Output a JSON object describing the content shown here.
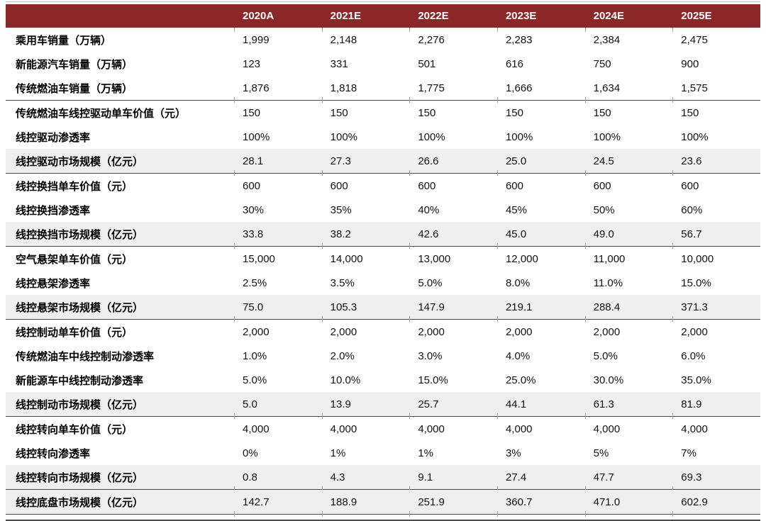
{
  "colors": {
    "header_bg": "#8B2726",
    "header_text": "#FFFFFF",
    "shaded_row_bg": "#EFEFEF",
    "section_border": "#4A4A4A",
    "tick_mark": "#A3A3A3",
    "top_rule": "#BDBDBD"
  },
  "chart_data": {
    "type": "table",
    "columns": [
      "",
      "2020A",
      "2021E",
      "2022E",
      "2023E",
      "2024E",
      "2025E"
    ],
    "rows": [
      {
        "label": "乘用车销量（万辆）",
        "values": [
          "1,999",
          "2,148",
          "2,276",
          "2,283",
          "2,384",
          "2,475"
        ],
        "shaded": false,
        "section_end": false
      },
      {
        "label": "新能源汽车销量（万辆）",
        "values": [
          "123",
          "331",
          "501",
          "616",
          "750",
          "900"
        ],
        "shaded": false,
        "section_end": false
      },
      {
        "label": "传统燃油车销量（万辆）",
        "values": [
          "1,876",
          "1,818",
          "1,775",
          "1,666",
          "1,634",
          "1,575"
        ],
        "shaded": false,
        "section_end": true
      },
      {
        "label": "传统燃油车线控驱动单车价值（元）",
        "values": [
          "150",
          "150",
          "150",
          "150",
          "150",
          "150"
        ],
        "shaded": false,
        "section_end": false
      },
      {
        "label": "线控驱动渗透率",
        "values": [
          "100%",
          "100%",
          "100%",
          "100%",
          "100%",
          "100%"
        ],
        "shaded": false,
        "section_end": false
      },
      {
        "label": "线控驱动市场规模（亿元）",
        "values": [
          "28.1",
          "27.3",
          "26.6",
          "25.0",
          "24.5",
          "23.6"
        ],
        "shaded": true,
        "section_end": true
      },
      {
        "label": "线控换挡单车价值（元）",
        "values": [
          "600",
          "600",
          "600",
          "600",
          "600",
          "600"
        ],
        "shaded": false,
        "section_end": false
      },
      {
        "label": "线控换挡渗透率",
        "values": [
          "30%",
          "35%",
          "40%",
          "45%",
          "50%",
          "60%"
        ],
        "shaded": false,
        "section_end": false
      },
      {
        "label": "线控换挡市场规模（亿元）",
        "values": [
          "33.8",
          "38.2",
          "42.6",
          "45.0",
          "49.0",
          "56.7"
        ],
        "shaded": true,
        "section_end": true
      },
      {
        "label": "空气悬架单车价值（元）",
        "values": [
          "15,000",
          "14,000",
          "13,000",
          "12,000",
          "11,000",
          "10,000"
        ],
        "shaded": false,
        "section_end": false
      },
      {
        "label": "线控悬架渗透率",
        "values": [
          "2.5%",
          "3.5%",
          "5.0%",
          "8.0%",
          "11.0%",
          "15.0%"
        ],
        "shaded": false,
        "section_end": false
      },
      {
        "label": "线控悬架市场规模（亿元）",
        "values": [
          "75.0",
          "105.3",
          "147.9",
          "219.1",
          "288.4",
          "371.3"
        ],
        "shaded": true,
        "section_end": true
      },
      {
        "label": "线控制动单车价值（元）",
        "values": [
          "2,000",
          "2,000",
          "2,000",
          "2,000",
          "2,000",
          "2,000"
        ],
        "shaded": false,
        "section_end": false
      },
      {
        "label": "传统燃油车中线控制动渗透率",
        "values": [
          "1.0%",
          "2.0%",
          "3.0%",
          "4.0%",
          "5.0%",
          "6.0%"
        ],
        "shaded": false,
        "section_end": false
      },
      {
        "label": "新能源车中线控制动渗透率",
        "values": [
          "5.0%",
          "10.0%",
          "15.0%",
          "25.0%",
          "30.0%",
          "35.0%"
        ],
        "shaded": false,
        "section_end": false
      },
      {
        "label": "线控制动市场规模（亿元）",
        "values": [
          "5.0",
          "13.9",
          "25.7",
          "44.1",
          "61.3",
          "81.9"
        ],
        "shaded": true,
        "section_end": true
      },
      {
        "label": "线控转向单车价值（元）",
        "values": [
          "4,000",
          "4,000",
          "4,000",
          "4,000",
          "4,000",
          "4,000"
        ],
        "shaded": false,
        "section_end": false
      },
      {
        "label": "线控转向渗透率",
        "values": [
          "0%",
          "1%",
          "1%",
          "3%",
          "5%",
          "7%"
        ],
        "shaded": false,
        "section_end": false
      },
      {
        "label": "线控转向市场规模（亿元）",
        "values": [
          "0.8",
          "4.3",
          "9.1",
          "27.4",
          "47.7",
          "69.3"
        ],
        "shaded": true,
        "section_end": true
      },
      {
        "label": "线控底盘市场规模（亿元）",
        "values": [
          "142.7",
          "188.9",
          "251.9",
          "360.7",
          "471.0",
          "602.9"
        ],
        "shaded": true,
        "section_end": true
      }
    ]
  }
}
